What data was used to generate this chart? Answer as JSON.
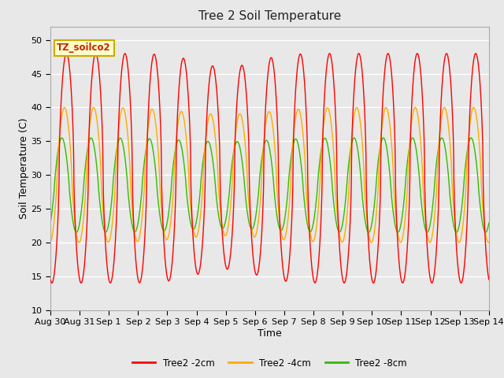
{
  "title": "Tree 2 Soil Temperature",
  "xlabel": "Time",
  "ylabel": "Soil Temperature (C)",
  "ylim": [
    10,
    52
  ],
  "yticks": [
    10,
    15,
    20,
    25,
    30,
    35,
    40,
    45,
    50
  ],
  "x_labels": [
    "Aug 30",
    "Aug 31",
    "Sep 1",
    "Sep 2",
    "Sep 3",
    "Sep 4",
    "Sep 5",
    "Sep 6",
    "Sep 7",
    "Sep 8",
    "Sep 9",
    "Sep 10",
    "Sep 11",
    "Sep 12",
    "Sep 13",
    "Sep 14"
  ],
  "background_color": "#e8e8e8",
  "fig_bg_color": "#e8e8e8",
  "annotation_text": "TZ_soilco2",
  "annotation_bg": "#ffffcc",
  "annotation_border": "#ccaa00",
  "colors": {
    "2cm": "#ff0000",
    "4cm": "#ffaa00",
    "8cm": "#33bb00"
  },
  "legend_labels": [
    "Tree2 -2cm",
    "Tree2 -4cm",
    "Tree2 -8cm"
  ],
  "title_fontsize": 11,
  "axis_fontsize": 9,
  "tick_fontsize": 8
}
